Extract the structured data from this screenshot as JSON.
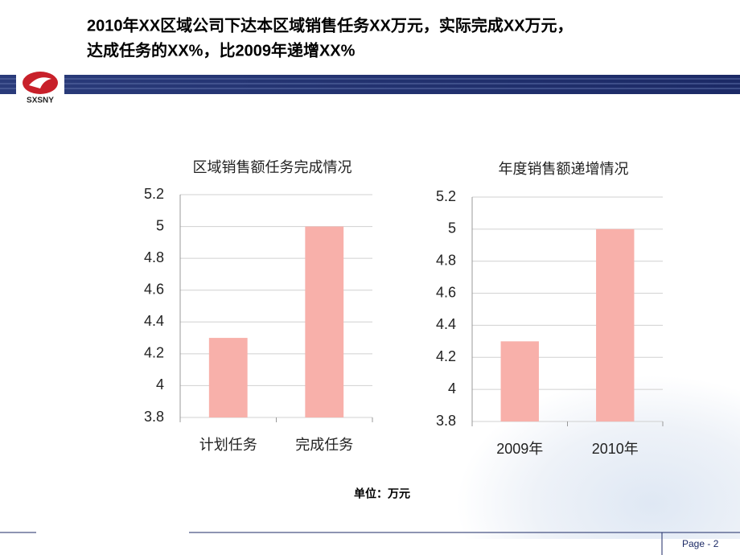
{
  "title": [
    "2010年XX区域公司下达本区域销售任务XX万元，实际完成XX万元，",
    "达成任务的XX%，比2009年递增XX%"
  ],
  "logo": "SXSNY",
  "unit": "单位：万元",
  "page": "Page - 2",
  "chart_data": [
    {
      "type": "bar",
      "title": "区域销售额任务完成情况",
      "categories": [
        "计划任务",
        "完成任务"
      ],
      "values": [
        4.3,
        5
      ],
      "color": "#f8b0aa",
      "ylim": [
        3.8,
        5.2
      ],
      "yticks": [
        3.8,
        4,
        4.2,
        4.4,
        4.6,
        4.8,
        5,
        5.2
      ],
      "grid": true
    },
    {
      "type": "bar",
      "title": "年度销售额递增情况",
      "categories": [
        "2009年",
        "2010年"
      ],
      "values": [
        4.3,
        5
      ],
      "color": "#f8b0aa",
      "ylim": [
        3.8,
        5.2
      ],
      "yticks": [
        3.8,
        4,
        4.2,
        4.4,
        4.6,
        4.8,
        5,
        5.2
      ],
      "grid": true
    }
  ]
}
